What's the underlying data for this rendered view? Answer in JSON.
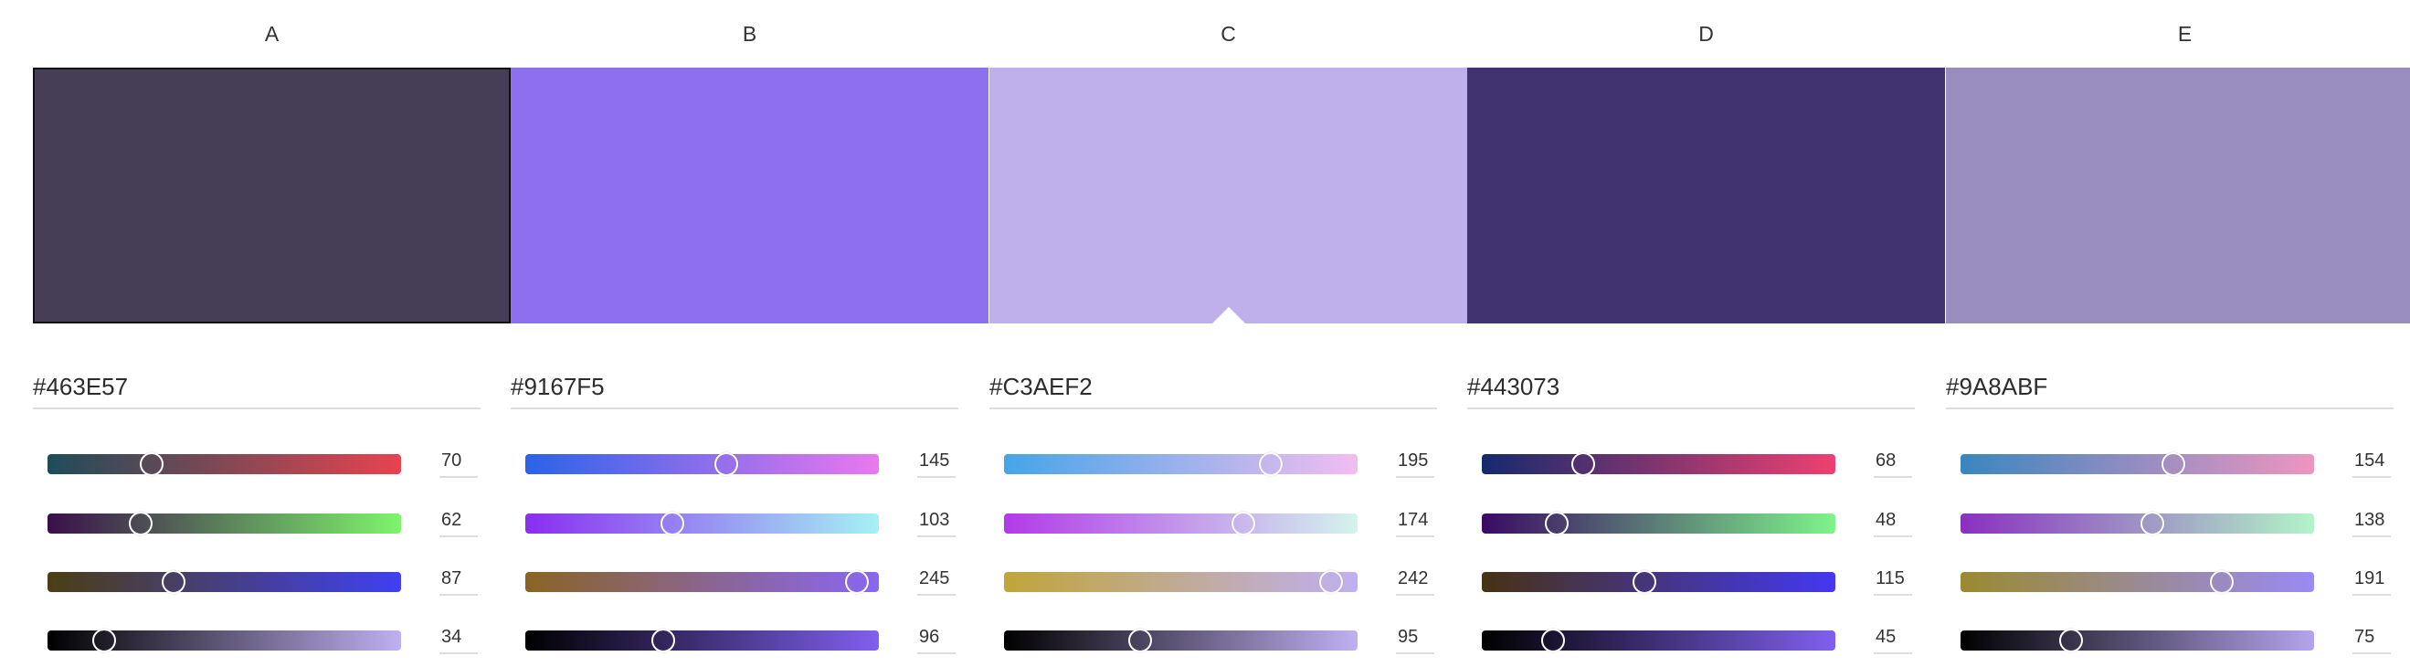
{
  "columns": [
    {
      "letter": "A",
      "hex": "#463E57",
      "color": "#463E57",
      "selected": true,
      "caret": false,
      "sliders": [
        {
          "value": 70,
          "gradient": [
            "#1e4c5a",
            "#e8434f"
          ]
        },
        {
          "value": 62,
          "gradient": [
            "#3a0f4a",
            "#7ef46c"
          ]
        },
        {
          "value": 87,
          "gradient": [
            "#4b3e14",
            "#4040f2"
          ]
        },
        {
          "value": 34,
          "gradient": [
            "#000000",
            "#bfb0f0"
          ]
        }
      ]
    },
    {
      "letter": "B",
      "hex": "#9167F5",
      "color": "#8C70EE",
      "selected": false,
      "caret": false,
      "sliders": [
        {
          "value": 145,
          "gradient": [
            "#2b63e8",
            "#ea78ee"
          ]
        },
        {
          "value": 103,
          "gradient": [
            "#8a2ef0",
            "#a5f1f4"
          ]
        },
        {
          "value": 245,
          "gradient": [
            "#8a6424",
            "#8a66f3"
          ]
        },
        {
          "value": 96,
          "gradient": [
            "#000000",
            "#8060ee"
          ]
        }
      ]
    },
    {
      "letter": "C",
      "hex": "#C3AEF2",
      "color": "#BFB0EC",
      "selected": false,
      "caret": true,
      "sliders": [
        {
          "value": 195,
          "gradient": [
            "#45a5e8",
            "#f2bdf0"
          ]
        },
        {
          "value": 174,
          "gradient": [
            "#b23ae8",
            "#d4f4ee"
          ]
        },
        {
          "value": 242,
          "gradient": [
            "#c0a53a",
            "#c0b0f2"
          ]
        },
        {
          "value": 95,
          "gradient": [
            "#000000",
            "#c0b0f2"
          ]
        }
      ]
    },
    {
      "letter": "D",
      "hex": "#443073",
      "color": "#403370",
      "selected": false,
      "caret": false,
      "sliders": [
        {
          "value": 68,
          "gradient": [
            "#142a6e",
            "#ee4070"
          ]
        },
        {
          "value": 48,
          "gradient": [
            "#3a0a64",
            "#7ef48a"
          ]
        },
        {
          "value": 115,
          "gradient": [
            "#463214",
            "#4438f2"
          ]
        },
        {
          "value": 45,
          "gradient": [
            "#000000",
            "#8060ee"
          ]
        }
      ]
    },
    {
      "letter": "E",
      "hex": "#9A8ABF",
      "color": "#998DBE",
      "selected": false,
      "caret": false,
      "sliders": [
        {
          "value": 154,
          "gradient": [
            "#3a86c0",
            "#ee95c0"
          ]
        },
        {
          "value": 138,
          "gradient": [
            "#8a30c0",
            "#b2f4c8"
          ]
        },
        {
          "value": 191,
          "gradient": [
            "#9a8a30",
            "#9a8af4"
          ]
        },
        {
          "value": 75,
          "gradient": [
            "#000000",
            "#b4a4ec"
          ]
        }
      ]
    }
  ]
}
